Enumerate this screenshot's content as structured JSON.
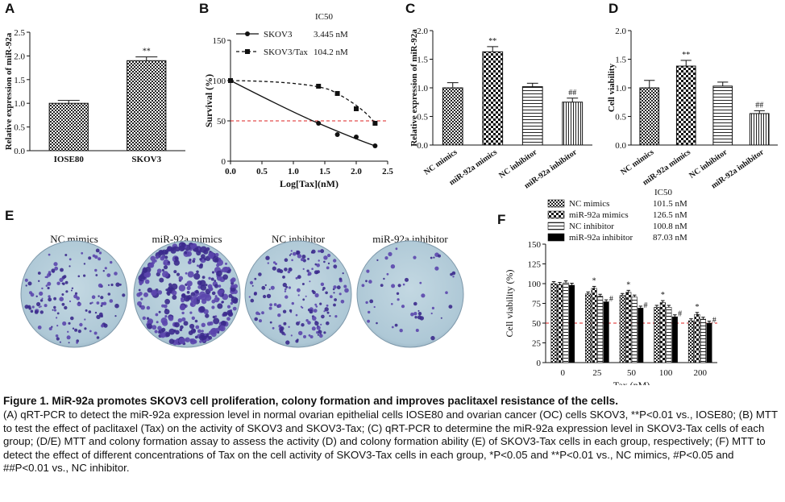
{
  "panels": {
    "A": {
      "label": "A",
      "chart_data": {
        "type": "bar",
        "categories": [
          "IOSE80",
          "SKOV3"
        ],
        "values": [
          1.0,
          1.9
        ],
        "errors": [
          0.06,
          0.08
        ],
        "ylabel": "Relative  expression of miR-92a",
        "ylim": [
          0,
          2.5
        ],
        "yticks": [
          "0.0",
          "0.5",
          "1.0",
          "1.5",
          "2.0",
          "2.5"
        ],
        "annotations": [
          "",
          "**"
        ]
      }
    },
    "B": {
      "label": "B",
      "chart_data": {
        "type": "line",
        "xlabel": "Log[Tax](nM)",
        "ylabel": "Survival (%)",
        "xlim": [
          0,
          2.5
        ],
        "ylim": [
          0,
          150
        ],
        "xticks": [
          "0.0",
          "0.5",
          "1.0",
          "1.5",
          "2.0",
          "2.5"
        ],
        "yticks": [
          "0",
          "50",
          "100",
          "150"
        ],
        "legend_header": "IC50",
        "reference_line": 50,
        "series": [
          {
            "name": "SKOV3",
            "ic50": "3.445 nM",
            "style": "solid",
            "marker": "circle",
            "x": [
              0,
              1.4,
              1.7,
              2.0,
              2.3
            ],
            "y": [
              100,
              47,
              33,
              30,
              19
            ]
          },
          {
            "name": "SKOV3/Tax",
            "ic50": "104.2 nM",
            "style": "dashed",
            "marker": "square",
            "x": [
              0,
              1.4,
              1.7,
              2.0,
              2.3
            ],
            "y": [
              100,
              93,
              84,
              65,
              47
            ]
          }
        ]
      }
    },
    "C": {
      "label": "C",
      "chart_data": {
        "type": "bar",
        "categories": [
          "NC mimics",
          "miR-92a mimics",
          "NC inhibitor",
          "miR-92a inhibitor"
        ],
        "values": [
          1.0,
          1.63,
          1.02,
          0.75
        ],
        "errors": [
          0.09,
          0.09,
          0.06,
          0.07
        ],
        "ylabel": "Relative  expression of miR-92a",
        "ylim": [
          0,
          2.0
        ],
        "yticks": [
          "0.0",
          "0.5",
          "1.0",
          "1.5",
          "2.0"
        ],
        "annotations": [
          "",
          "**",
          "",
          "##"
        ],
        "patterns": [
          "check",
          "bigcheck",
          "hlines",
          "vlines"
        ]
      }
    },
    "D": {
      "label": "D",
      "chart_data": {
        "type": "bar",
        "categories": [
          "NC mimics",
          "miR-92a mimics",
          "NC inhibitor",
          "miR-92a inhibitor"
        ],
        "values": [
          1.0,
          1.38,
          1.03,
          0.55
        ],
        "errors": [
          0.13,
          0.1,
          0.07,
          0.05
        ],
        "ylabel": "Cell viability",
        "ylim": [
          0,
          2.0
        ],
        "yticks": [
          "0.0",
          "0.5",
          "1.0",
          "1.5",
          "2.0"
        ],
        "annotations": [
          "",
          "**",
          "",
          "##"
        ],
        "patterns": [
          "check",
          "bigcheck",
          "hlines",
          "vlines"
        ]
      }
    },
    "E": {
      "label": "E",
      "dishes": [
        "NC mimics",
        "miR-92a mimics",
        "NC inhibitor",
        "miR-92a inhibitor"
      ]
    },
    "F": {
      "label": "F",
      "chart_data": {
        "type": "bar",
        "categories": [
          "0",
          "25",
          "50",
          "100",
          "200"
        ],
        "xlabel": "Tax (nM)",
        "ylabel": "Cell viability (%)",
        "ylim": [
          0,
          150
        ],
        "yticks": [
          "0",
          "25",
          "50",
          "75",
          "100",
          "125",
          "150"
        ],
        "legend_header": "IC50",
        "reference_line": 50,
        "series": [
          {
            "name": "NC mimics",
            "ic50": "101.5 nM",
            "pattern": "check",
            "values": [
              100,
              87,
              85,
              70,
              53
            ],
            "annotations": [
              "",
              "",
              "",
              "",
              ""
            ]
          },
          {
            "name": "miR-92a mimics",
            "ic50": "126.5 nM",
            "pattern": "bigcheck",
            "values": [
              99,
              94,
              89,
              76,
              61
            ],
            "annotations": [
              "",
              "*",
              "*",
              "*",
              "*"
            ]
          },
          {
            "name": "NC inhibitor",
            "ic50": "100.8 nM",
            "pattern": "hlines",
            "values": [
              101,
              84,
              83,
              70,
              55
            ],
            "annotations": [
              "",
              "",
              "",
              "",
              ""
            ]
          },
          {
            "name": "miR-92a inhibitor",
            "ic50": "87.03 nM",
            "pattern": "solid",
            "values": [
              98,
              77,
              69,
              58,
              50
            ],
            "annotations": [
              "",
              "#",
              "#",
              "#",
              "#"
            ]
          }
        ]
      }
    }
  },
  "caption": {
    "title": "Figure 1. MiR-92a promotes SKOV3 cell proliferation, colony formation and improves paclitaxel resistance of the cells.",
    "body": "(A) qRT-PCR to detect the miR-92a expression level in normal ovarian epithelial cells IOSE80 and ovarian cancer (OC) cells SKOV3, **P<0.01 vs., IOSE80; (B) MTT to test the effect of paclitaxel (Tax) on the activity of SKOV3 and SKOV3-Tax; (C) qRT-PCR to determine the miR-92a expression level in SKOV3-Tax cells of each group; (D/E) MTT and colony formation assay to assess the activity (D) and colony formation ability (E) of SKOV3-Tax cells in each group, respectively; (F) MTT to detect the effect of different concentrations of Tax on the cell activity of SKOV3-Tax cells in each group, *P<0.05 and **P<0.01 vs., NC mimics, #P<0.05 and ##P<0.01 vs., NC inhibitor."
  }
}
